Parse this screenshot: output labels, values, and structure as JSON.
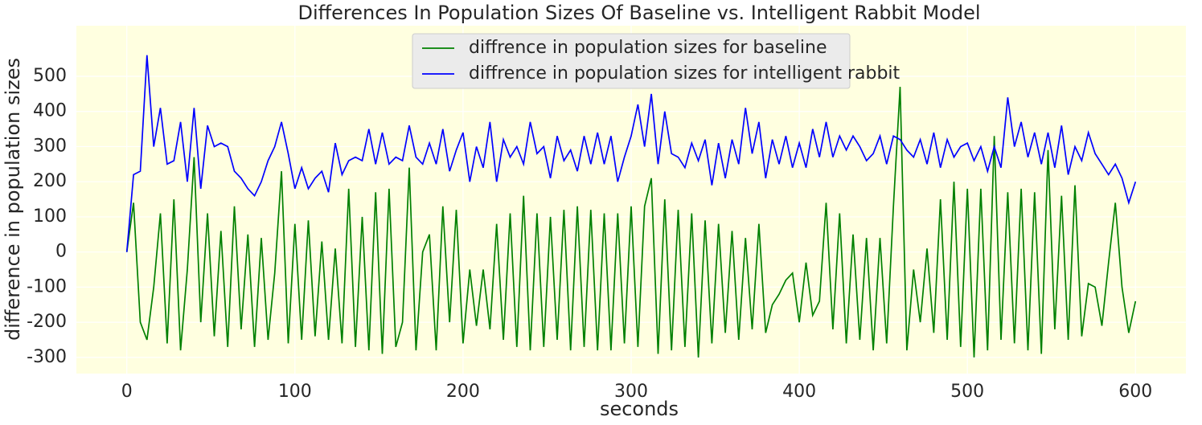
{
  "chart_data": {
    "type": "line",
    "title": "Differences In Population Sizes Of Baseline vs. Intelligent Rabbit Model",
    "x_label": "seconds",
    "y_label": "difference in population sizes",
    "xlim": [
      -30,
      630
    ],
    "ylim": [
      -346,
      644
    ],
    "xticks": [
      0,
      100,
      200,
      300,
      400,
      500,
      600
    ],
    "yticks": [
      -300,
      -200,
      -100,
      0,
      100,
      200,
      300,
      400,
      500
    ],
    "grid": true,
    "legend": "upper center",
    "background": "#ffffe0",
    "x": [
      0,
      4,
      8,
      12,
      16,
      20,
      24,
      28,
      32,
      36,
      40,
      44,
      48,
      52,
      56,
      60,
      64,
      68,
      72,
      76,
      80,
      84,
      88,
      92,
      96,
      100,
      104,
      108,
      112,
      116,
      120,
      124,
      128,
      132,
      136,
      140,
      144,
      148,
      152,
      156,
      160,
      164,
      168,
      172,
      176,
      180,
      184,
      188,
      192,
      196,
      200,
      204,
      208,
      212,
      216,
      220,
      224,
      228,
      232,
      236,
      240,
      244,
      248,
      252,
      256,
      260,
      264,
      268,
      272,
      276,
      280,
      284,
      288,
      292,
      296,
      300,
      304,
      308,
      312,
      316,
      320,
      324,
      328,
      332,
      336,
      340,
      344,
      348,
      352,
      356,
      360,
      364,
      368,
      372,
      376,
      380,
      384,
      388,
      392,
      396,
      400,
      404,
      408,
      412,
      416,
      420,
      424,
      428,
      432,
      436,
      440,
      444,
      448,
      452,
      456,
      460,
      464,
      468,
      472,
      476,
      480,
      484,
      488,
      492,
      496,
      500,
      504,
      508,
      512,
      516,
      520,
      524,
      528,
      532,
      536,
      540,
      544,
      548,
      552,
      556,
      560,
      564,
      568,
      572,
      576,
      580,
      584,
      588,
      592,
      596,
      600
    ],
    "series": [
      {
        "name": "diffrence in population sizes for baseline",
        "color": "#008000",
        "values": [
          0,
          140,
          -200,
          -250,
          -100,
          110,
          -260,
          150,
          -280,
          -50,
          270,
          -200,
          110,
          -240,
          60,
          -270,
          130,
          -220,
          50,
          -270,
          40,
          -250,
          -60,
          230,
          -260,
          80,
          -250,
          90,
          -240,
          30,
          -250,
          10,
          -260,
          180,
          -270,
          100,
          -280,
          170,
          -290,
          180,
          -270,
          -200,
          240,
          -280,
          0,
          50,
          -280,
          130,
          -200,
          120,
          -260,
          -50,
          -210,
          -50,
          -220,
          80,
          -250,
          110,
          -270,
          160,
          -280,
          110,
          -270,
          100,
          -250,
          120,
          -280,
          130,
          -270,
          120,
          -280,
          110,
          -280,
          110,
          -260,
          130,
          -270,
          130,
          210,
          -290,
          150,
          -280,
          120,
          -270,
          110,
          -300,
          90,
          -260,
          80,
          -230,
          60,
          -250,
          40,
          -220,
          80,
          -230,
          -150,
          -120,
          -80,
          -60,
          -200,
          -30,
          -180,
          -140,
          140,
          -220,
          110,
          -260,
          50,
          -250,
          40,
          -280,
          40,
          -260,
          130,
          470,
          -280,
          -50,
          -200,
          10,
          -230,
          150,
          -250,
          200,
          -270,
          180,
          -300,
          180,
          -280,
          330,
          -250,
          170,
          -260,
          180,
          -280,
          170,
          -290,
          290,
          -220,
          160,
          -250,
          190,
          -240,
          -90,
          -100,
          -210,
          -30,
          140,
          -100,
          -230,
          -140
        ]
      },
      {
        "name": "diffrence in population sizes for intelligent rabbit",
        "color": "#0000ff",
        "values": [
          0,
          220,
          230,
          560,
          300,
          410,
          250,
          260,
          370,
          200,
          410,
          180,
          360,
          300,
          310,
          300,
          230,
          210,
          180,
          160,
          200,
          260,
          300,
          370,
          280,
          180,
          240,
          180,
          210,
          230,
          170,
          310,
          220,
          260,
          270,
          260,
          350,
          250,
          340,
          250,
          270,
          260,
          360,
          270,
          250,
          310,
          250,
          350,
          230,
          290,
          340,
          200,
          300,
          240,
          370,
          200,
          320,
          270,
          300,
          250,
          370,
          280,
          300,
          210,
          330,
          260,
          290,
          230,
          330,
          250,
          340,
          250,
          330,
          200,
          270,
          330,
          420,
          300,
          450,
          250,
          400,
          280,
          270,
          240,
          310,
          260,
          320,
          190,
          310,
          210,
          320,
          250,
          410,
          280,
          370,
          210,
          320,
          250,
          330,
          240,
          310,
          240,
          350,
          270,
          370,
          270,
          330,
          290,
          330,
          300,
          260,
          280,
          330,
          250,
          330,
          320,
          290,
          270,
          320,
          250,
          340,
          240,
          320,
          270,
          300,
          310,
          260,
          300,
          230,
          300,
          240,
          440,
          300,
          370,
          270,
          340,
          250,
          340,
          240,
          360,
          220,
          300,
          260,
          340,
          280,
          250,
          220,
          250,
          210,
          140,
          200
        ]
      }
    ]
  }
}
